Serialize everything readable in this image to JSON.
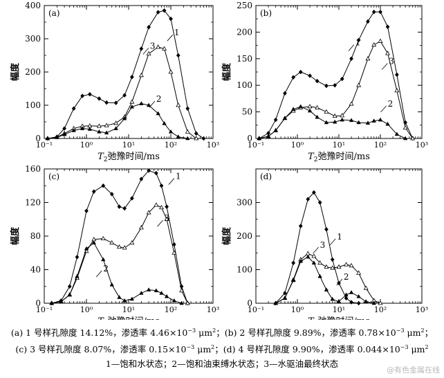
{
  "colors": {
    "line": "#000000",
    "background": "#ffffff",
    "watermark": "#b9b9b9"
  },
  "axis_text": {
    "ylabel": "幅度",
    "xlabel_T": "T",
    "xlabel_sub": "2",
    "xlabel_rest": "弛豫时间/ms"
  },
  "chart_data": [
    {
      "type": "line",
      "panel_label": "(a)",
      "x_scale": "log",
      "xlim": [
        0.1,
        1000
      ],
      "ylim": [
        0,
        400
      ],
      "yticks": [
        0,
        100,
        200,
        300,
        400
      ],
      "xticks": [
        "10⁻¹",
        "10⁰",
        "10¹",
        "10²",
        "10³"
      ],
      "xlabel": "T2弛豫时间/ms",
      "ylabel": "幅度",
      "series": [
        {
          "name": "1",
          "marker": "diamond-filled",
          "x": [
            0.12,
            0.2,
            0.3,
            0.5,
            0.8,
            1.2,
            2,
            3,
            5,
            8,
            12,
            20,
            30,
            50,
            70,
            100,
            150,
            250,
            400,
            600
          ],
          "y": [
            0,
            5,
            30,
            90,
            128,
            133,
            120,
            108,
            107,
            130,
            185,
            270,
            335,
            380,
            385,
            360,
            250,
            90,
            15,
            0
          ]
        },
        {
          "name": "3",
          "marker": "triangle-open",
          "x": [
            0.12,
            0.2,
            0.3,
            0.5,
            0.8,
            1.2,
            2,
            3,
            5,
            8,
            12,
            20,
            30,
            50,
            70,
            100,
            150,
            250,
            400
          ],
          "y": [
            0,
            4,
            15,
            30,
            37,
            38,
            37,
            39,
            46,
            65,
            110,
            190,
            255,
            275,
            270,
            200,
            100,
            20,
            0
          ]
        },
        {
          "name": "2",
          "marker": "triangle-filled",
          "x": [
            0.12,
            0.2,
            0.3,
            0.5,
            0.8,
            1.2,
            2,
            3,
            5,
            8,
            12,
            20,
            30,
            50,
            70,
            100,
            150,
            250
          ],
          "y": [
            0,
            3,
            12,
            24,
            30,
            28,
            20,
            17,
            30,
            60,
            95,
            105,
            100,
            75,
            45,
            20,
            5,
            0
          ]
        }
      ]
    },
    {
      "type": "line",
      "panel_label": "(b)",
      "x_scale": "log",
      "xlim": [
        0.1,
        1000
      ],
      "ylim": [
        0,
        250
      ],
      "yticks": [
        0,
        50,
        100,
        150,
        200,
        250
      ],
      "xticks": [
        "10⁻¹",
        "10⁰",
        "10¹",
        "10²",
        "10³"
      ],
      "xlabel": "T2弛豫时间/ms",
      "ylabel": "幅度",
      "series": [
        {
          "name": "1",
          "marker": "diamond-filled",
          "x": [
            0.12,
            0.2,
            0.3,
            0.5,
            0.8,
            1.2,
            2,
            3,
            5,
            8,
            12,
            20,
            30,
            50,
            70,
            100,
            150,
            250,
            400,
            600
          ],
          "y": [
            0,
            10,
            35,
            85,
            115,
            125,
            118,
            108,
            99,
            100,
            112,
            150,
            185,
            220,
            238,
            238,
            210,
            120,
            30,
            0
          ]
        },
        {
          "name": "3",
          "marker": "triangle-open",
          "x": [
            0.12,
            0.2,
            0.3,
            0.5,
            0.8,
            1.2,
            2,
            3,
            5,
            8,
            12,
            20,
            30,
            50,
            70,
            100,
            150,
            250,
            400,
            600
          ],
          "y": [
            0,
            4,
            15,
            38,
            52,
            58,
            60,
            58,
            50,
            42,
            43,
            65,
            100,
            150,
            176,
            183,
            160,
            90,
            20,
            0
          ]
        },
        {
          "name": "2",
          "marker": "triangle-filled",
          "x": [
            0.12,
            0.2,
            0.3,
            0.5,
            0.8,
            1.2,
            2,
            3,
            5,
            8,
            12,
            20,
            30,
            50,
            70,
            100,
            150,
            250,
            400
          ],
          "y": [
            0,
            4,
            15,
            38,
            55,
            60,
            52,
            40,
            30,
            31,
            35,
            34,
            30,
            29,
            33,
            35,
            27,
            8,
            0
          ]
        }
      ]
    },
    {
      "type": "line",
      "panel_label": "(c)",
      "x_scale": "log",
      "xlim": [
        0.1,
        1000
      ],
      "ylim": [
        0,
        160
      ],
      "yticks": [
        0,
        40,
        80,
        120,
        160
      ],
      "xticks": [
        "10⁻¹",
        "10⁰",
        "10¹",
        "10²",
        "10³"
      ],
      "xlabel": "T2弛豫时间/ms",
      "ylabel": "幅度",
      "series": [
        {
          "name": "1",
          "marker": "diamond-filled",
          "x": [
            0.15,
            0.25,
            0.4,
            0.6,
            1,
            1.5,
            2.5,
            4,
            6,
            8,
            12,
            20,
            30,
            45,
            60,
            80,
            120,
            180,
            250
          ],
          "y": [
            0,
            3,
            20,
            55,
            110,
            133,
            140,
            130,
            115,
            113,
            125,
            148,
            158,
            155,
            140,
            115,
            70,
            20,
            0
          ]
        },
        {
          "name": "3",
          "marker": "triangle-open",
          "x": [
            0.15,
            0.25,
            0.4,
            0.6,
            1,
            1.5,
            2.5,
            4,
            6,
            8,
            12,
            20,
            30,
            45,
            60,
            80,
            120,
            180,
            250
          ],
          "y": [
            0,
            2,
            10,
            30,
            62,
            76,
            77,
            72,
            67,
            66,
            72,
            90,
            108,
            117,
            114,
            100,
            60,
            15,
            0
          ]
        },
        {
          "name": "2",
          "marker": "triangle-filled",
          "x": [
            0.15,
            0.25,
            0.4,
            0.6,
            1,
            1.5,
            2.5,
            4,
            6,
            8,
            12,
            20,
            30,
            45,
            60,
            80,
            120,
            180
          ],
          "y": [
            0,
            2,
            10,
            32,
            65,
            72,
            52,
            22,
            7,
            3,
            5,
            12,
            16,
            15,
            12,
            8,
            3,
            0
          ]
        }
      ]
    },
    {
      "type": "line",
      "panel_label": "(d)",
      "x_scale": "log",
      "xlim": [
        0.1,
        1000
      ],
      "ylim": [
        0,
        400
      ],
      "yticks": [
        0,
        100,
        200,
        300
      ],
      "xticks": [
        "10⁻¹",
        "10⁰",
        "10¹",
        "10²",
        "10³"
      ],
      "xlabel": "T2弛豫时间/ms",
      "ylabel": "幅度",
      "series": [
        {
          "name": "1",
          "marker": "diamond-filled",
          "x": [
            0.3,
            0.5,
            0.8,
            1.2,
            1.8,
            2.5,
            3.5,
            5,
            7,
            10,
            15,
            20,
            30
          ],
          "y": [
            0,
            30,
            120,
            230,
            310,
            330,
            300,
            220,
            130,
            60,
            15,
            3,
            0
          ]
        },
        {
          "name": "3",
          "marker": "triangle-open",
          "x": [
            0.3,
            0.5,
            0.8,
            1.2,
            1.8,
            2.5,
            3.5,
            5,
            7,
            10,
            15,
            20,
            30,
            45,
            70,
            100
          ],
          "y": [
            0,
            15,
            70,
            130,
            148,
            140,
            120,
            108,
            105,
            108,
            115,
            112,
            90,
            45,
            8,
            0
          ]
        },
        {
          "name": "2",
          "marker": "triangle-filled",
          "x": [
            0.3,
            0.5,
            0.8,
            1.2,
            1.8,
            2.5,
            3.5,
            5,
            7,
            10,
            15,
            20,
            30,
            45,
            70
          ],
          "y": [
            0,
            15,
            68,
            125,
            138,
            120,
            80,
            40,
            12,
            5,
            25,
            32,
            20,
            5,
            0
          ]
        }
      ]
    }
  ],
  "captions": {
    "line1": {
      "a_pre": "(a) 1 号样孔隙度 14.12%，渗透率 4.46×10",
      "a_exp": "−3",
      "a_unit": " μm",
      "a_unit_exp": "2",
      "sep": "；",
      "b_pre": "(b) 2 号样孔隙度 9.89%，渗透率 0.78×10",
      "b_exp": "−3",
      "b_unit": " μm",
      "b_unit_exp": "2",
      "end": "；"
    },
    "line2": {
      "c_pre": "(c) 3 号样孔隙度 8.07%，渗透率 0.15×10",
      "c_exp": "−3",
      "c_unit": " μm",
      "c_unit_exp": "2",
      "sep": "；",
      "d_pre": "(d) 4 号样孔隙度 9.90%，渗透率 0.044×10",
      "d_exp": "−3",
      "d_unit": " μm",
      "d_unit_exp": "2"
    },
    "line3": "1—饱和水状态；2—饱和油束缚水状态；3—水驱油最终状态"
  },
  "watermark": "@有色金属在线"
}
